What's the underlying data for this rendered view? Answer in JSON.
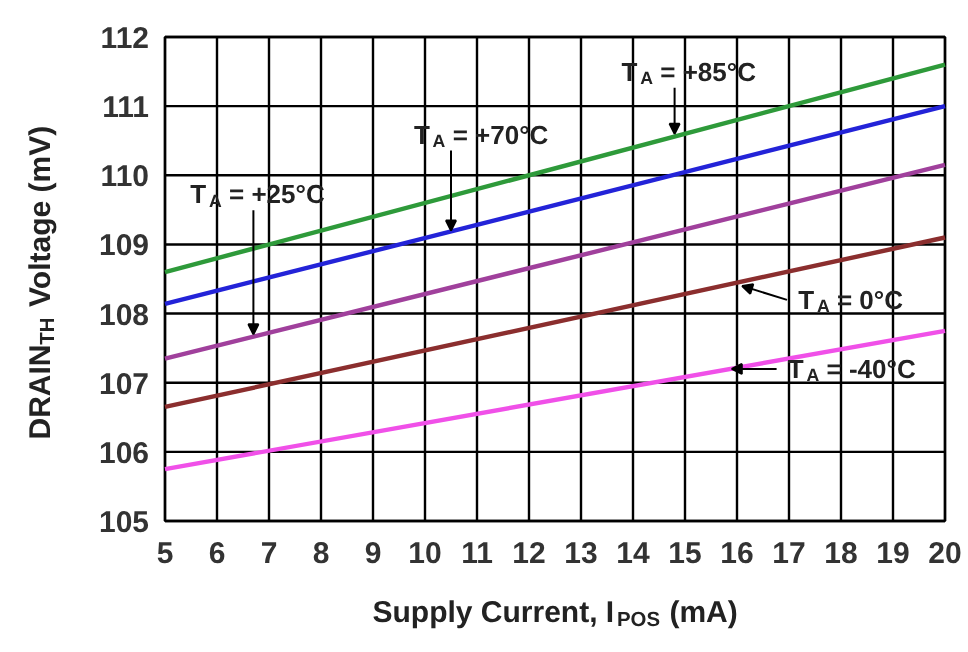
{
  "chart_data": {
    "type": "line",
    "xlabel": "Supply Current, I$_{POS}$ (mA)",
    "ylabel": "DRAIN$_{TH}$ Voltage (mV)",
    "x": [
      5,
      20
    ],
    "series": [
      {
        "color": "#2e9a3a",
        "values": [
          108.6,
          111.6
        ]
      },
      {
        "color": "#2323d8",
        "values": [
          108.14,
          111.0
        ]
      },
      {
        "color": "#a0409c",
        "values": [
          107.35,
          110.15
        ]
      },
      {
        "color": "#8b2e2e",
        "values": [
          106.65,
          109.1
        ]
      },
      {
        "color": "#f050e8",
        "values": [
          105.75,
          107.75
        ]
      }
    ],
    "xlim": [
      5,
      20
    ],
    "xticks": [
      5,
      6,
      7,
      8,
      9,
      10,
      11,
      12,
      13,
      14,
      15,
      16,
      17,
      18,
      19,
      20
    ],
    "ylim": [
      105,
      112
    ],
    "yticks": [
      105,
      106,
      107,
      108,
      109,
      110,
      111,
      112
    ],
    "grid": true,
    "marker": "none",
    "line_style": "solid",
    "annotations": [
      {
        "text": "T$_{A}$ = +85°C",
        "x": 14.8,
        "y": 110.6
      },
      {
        "text": "T$_{A}$ = +70°C",
        "x": 10.5,
        "y": 109.2
      },
      {
        "text": "T$_{A}$ = +25°C",
        "x": 6.7,
        "y": 107.7
      },
      {
        "text": "T$_{A}$ = 0°C",
        "x": 16.1,
        "y": 108.4
      },
      {
        "text": "T$_{A}$ = -40°C",
        "x": 15.9,
        "y": 107.2
      }
    ]
  }
}
